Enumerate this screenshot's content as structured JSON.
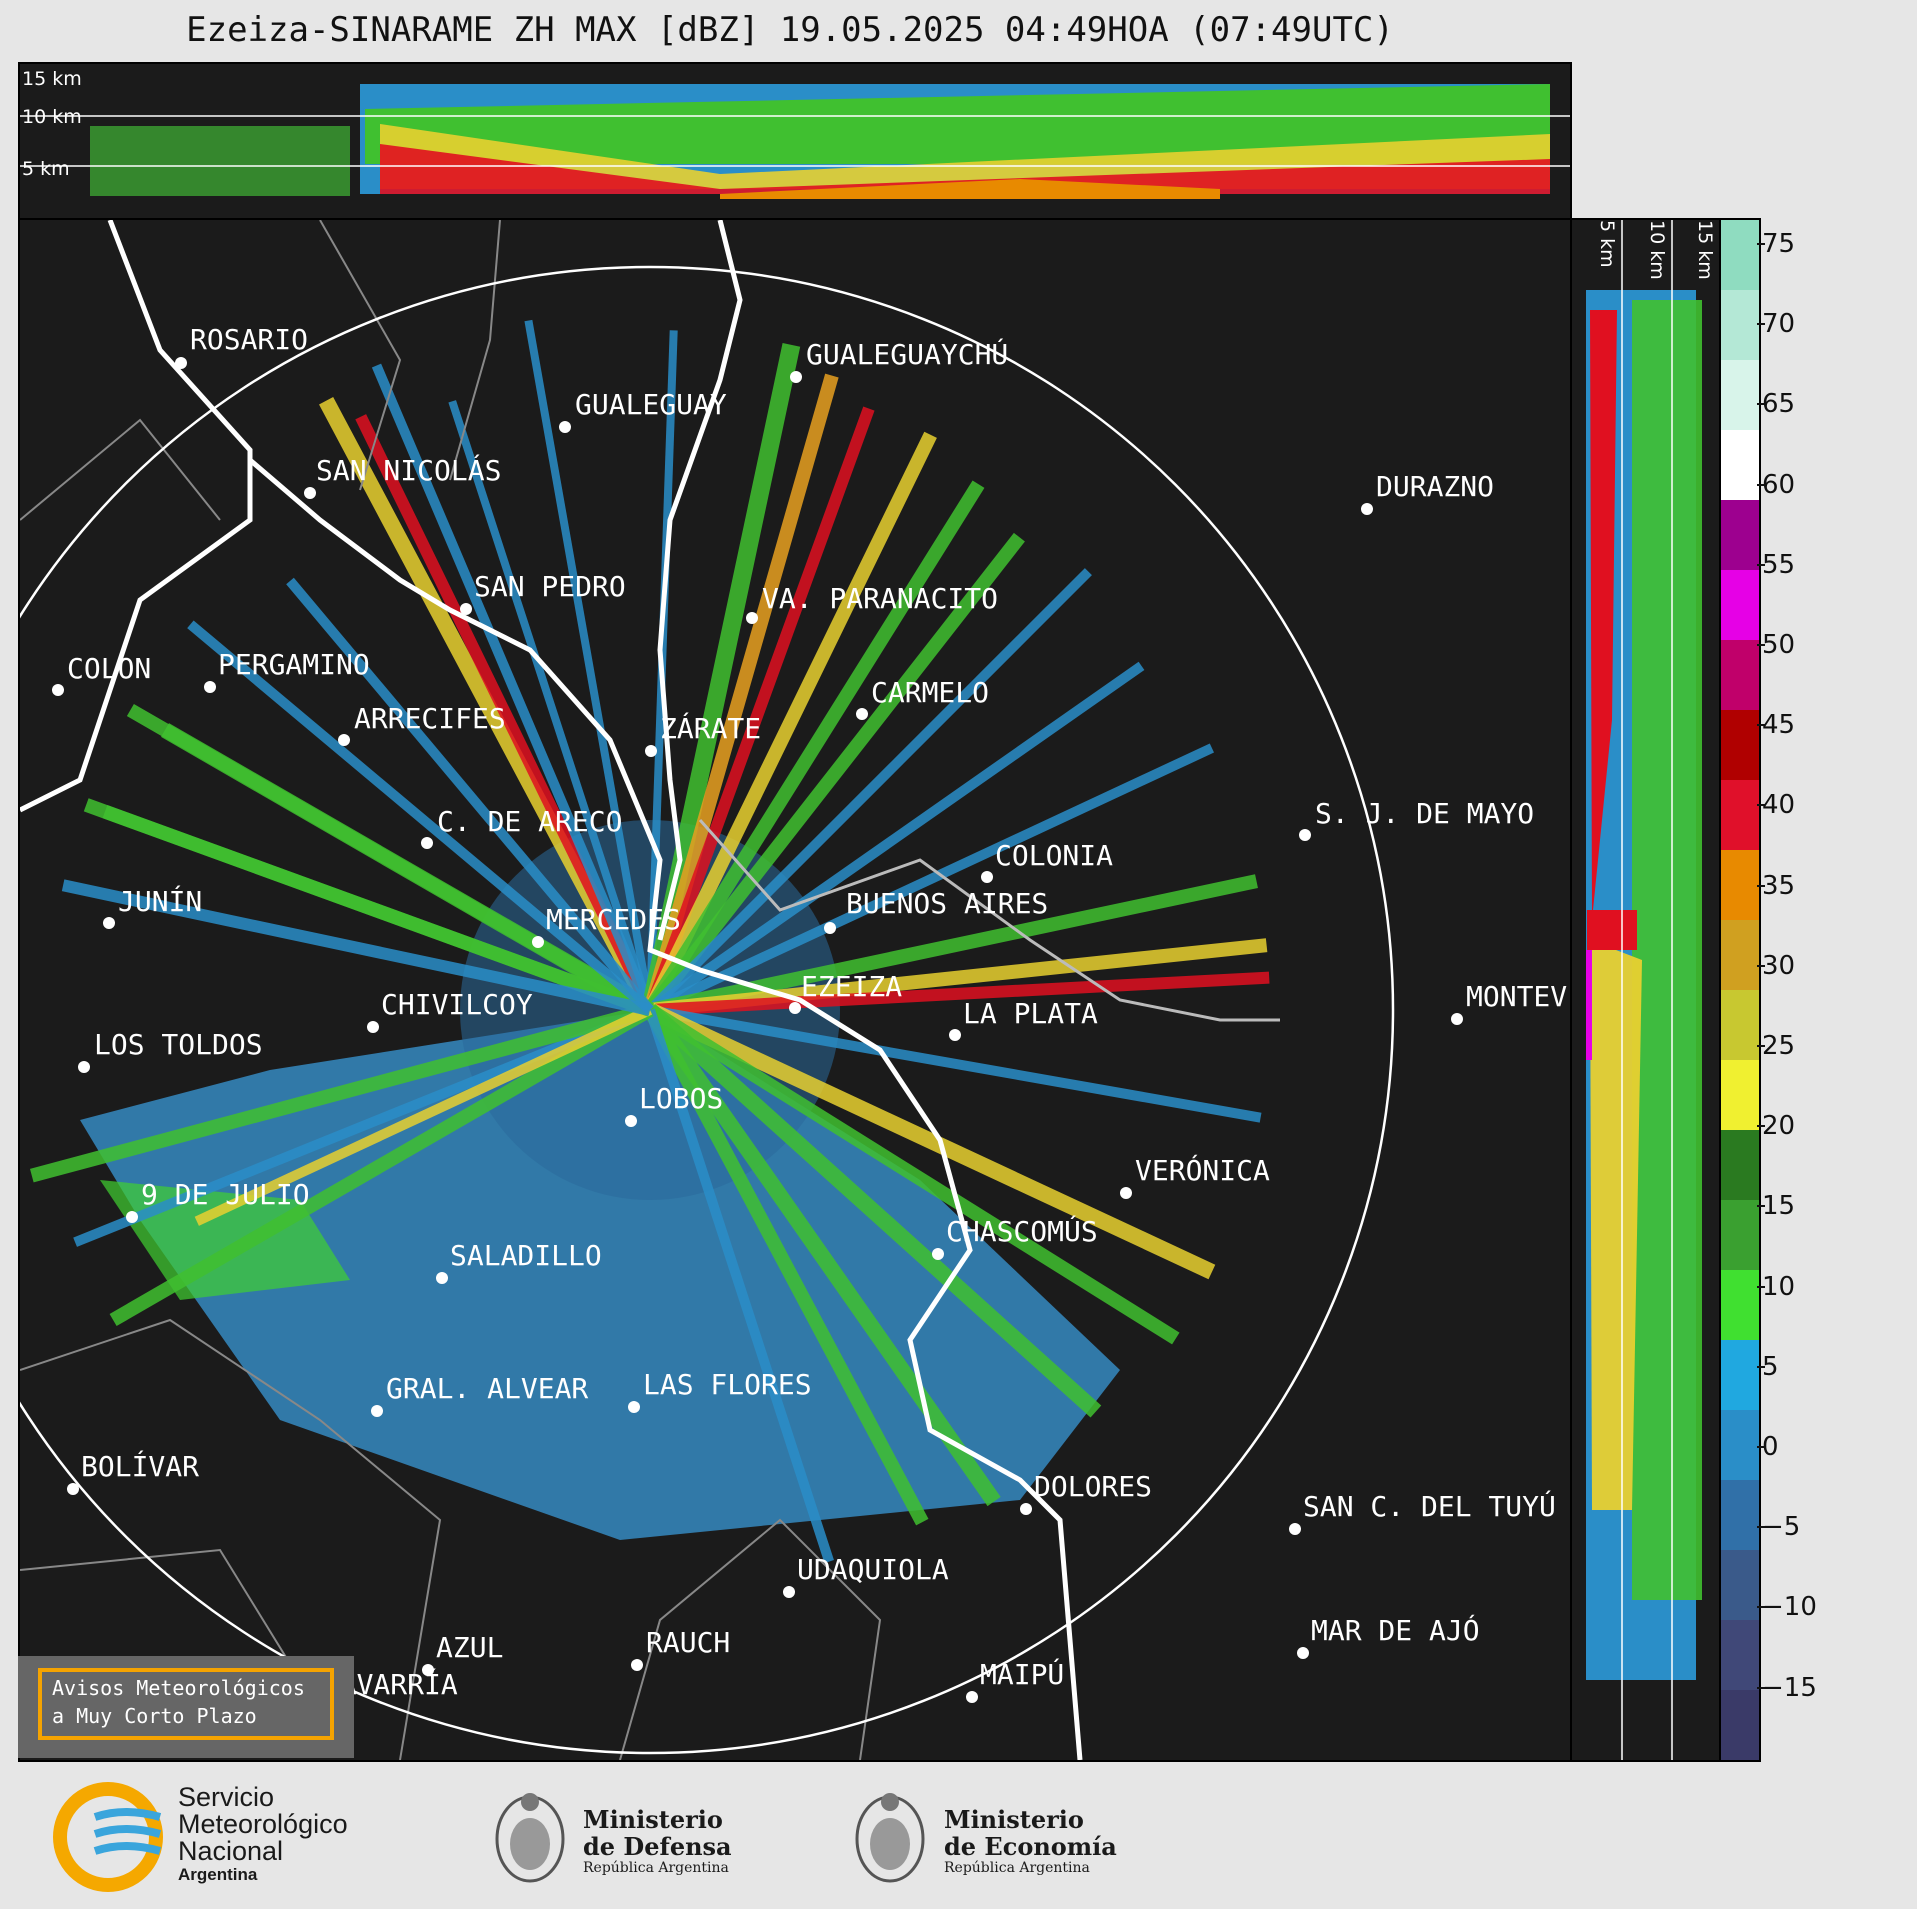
{
  "title": "Ezeiza-SINARAME ZH MAX [dBZ] 19.05.2025 04:49HOA (07:49UTC)",
  "height_labels_top": [
    "15 km",
    "10 km",
    "5 km"
  ],
  "height_labels_side": [
    "5 km",
    "10 km",
    "15 km"
  ],
  "colorbar": {
    "ticks": [
      "75",
      "70",
      "65",
      "60",
      "55",
      "50",
      "45",
      "40",
      "35",
      "30",
      "25",
      "20",
      "15",
      "10",
      "5",
      "0",
      "−5",
      "−10",
      "−15"
    ],
    "colors_top_to_bottom": [
      "#8fdcc0",
      "#b4e8d6",
      "#d8f4ea",
      "#ffffff",
      "#9d008f",
      "#e600e6",
      "#c0006a",
      "#b00000",
      "#e0102a",
      "#e88a00",
      "#d0a020",
      "#c8c830",
      "#f0f030",
      "#2a7a20",
      "#3aa030",
      "#40e030",
      "#20a8e0",
      "#2a8ec8",
      "#3070a8",
      "#3a5a8a",
      "#404878",
      "#3a3a68"
    ]
  },
  "cities": [
    {
      "name": "ROSARIO"
    },
    {
      "name": "GUALEGUAYCHÚ"
    },
    {
      "name": "GUALEGUAY"
    },
    {
      "name": "SAN NICOLÁS"
    },
    {
      "name": "DURAZNO"
    },
    {
      "name": "SAN PEDRO"
    },
    {
      "name": "VA. PARANACITO"
    },
    {
      "name": "COLON"
    },
    {
      "name": "PERGAMINO"
    },
    {
      "name": "CARMELO"
    },
    {
      "name": "ARRECIFES"
    },
    {
      "name": "ZÁRATE"
    },
    {
      "name": "C. DE ARECO"
    },
    {
      "name": "S. J. DE MAYO"
    },
    {
      "name": "COLONIA"
    },
    {
      "name": "JUNÍN"
    },
    {
      "name": "BUENOS AIRES"
    },
    {
      "name": "MERCEDES"
    },
    {
      "name": "EZEIZA"
    },
    {
      "name": "MONTEV"
    },
    {
      "name": "CHIVILCOY"
    },
    {
      "name": "LA PLATA"
    },
    {
      "name": "LOS TOLDOS"
    },
    {
      "name": "LOBOS"
    },
    {
      "name": "VERÓNICA"
    },
    {
      "name": "9 DE JULIO"
    },
    {
      "name": "CHASCOMÚS"
    },
    {
      "name": "SALADILLO"
    },
    {
      "name": "GRAL. ALVEAR"
    },
    {
      "name": "LAS FLORES"
    },
    {
      "name": "BOLÍVAR"
    },
    {
      "name": "DOLORES"
    },
    {
      "name": "SAN C. DEL TUYÚ"
    },
    {
      "name": "UDAQUIOLA"
    },
    {
      "name": "AZUL"
    },
    {
      "name": "RAUCH"
    },
    {
      "name": "MAR DE AJÓ"
    },
    {
      "name": "OLAVARRÍA"
    },
    {
      "name": "MAIPÚ"
    }
  ],
  "avisos": {
    "line1": "Avisos Meteorológicos",
    "line2": "a Muy Corto Plazo"
  },
  "footer": {
    "smn": {
      "line1": "Servicio",
      "line2": "Meteorológico",
      "line3": "Nacional",
      "line4": "Argentina"
    },
    "defensa": {
      "line1": "Ministerio",
      "line2": "de Defensa",
      "line3": "República Argentina"
    },
    "economia": {
      "line1": "Ministerio",
      "line2": "de Economía",
      "line3": "República Argentina"
    }
  }
}
